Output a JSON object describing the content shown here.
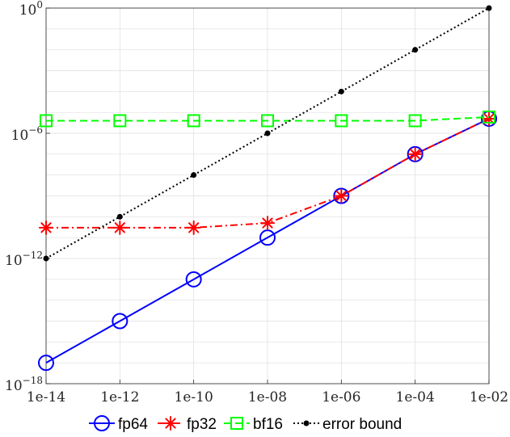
{
  "chart_data": {
    "type": "line",
    "title": "",
    "xlabel": "",
    "ylabel": "",
    "xscale": "log",
    "yscale": "log",
    "xlim": [
      1e-14,
      0.01
    ],
    "ylim": [
      1e-18,
      1
    ],
    "grid": true,
    "legend_position": "bottom",
    "x_ticks": [
      {
        "value": 1e-14,
        "label": "1e-14"
      },
      {
        "value": 1e-12,
        "label": "1e-12"
      },
      {
        "value": 1e-10,
        "label": "1e-10"
      },
      {
        "value": 1e-08,
        "label": "1e-08"
      },
      {
        "value": 1e-06,
        "label": "1e-06"
      },
      {
        "value": 0.0001,
        "label": "1e-04"
      },
      {
        "value": 0.01,
        "label": "1e-02"
      }
    ],
    "y_ticks": [
      {
        "value": 1,
        "base": "10",
        "exp": "0"
      },
      {
        "value": 1e-06,
        "base": "10",
        "exp": "−6"
      },
      {
        "value": 1e-12,
        "base": "10",
        "exp": "−12"
      },
      {
        "value": 1e-18,
        "base": "10",
        "exp": "−18"
      }
    ],
    "x": [
      1e-14,
      1e-12,
      1e-10,
      1e-08,
      1e-06,
      0.0001,
      0.01
    ],
    "series": [
      {
        "name": "fp64",
        "color": "#0000ff",
        "line": "solid",
        "marker": "circle",
        "values": [
          1e-17,
          1e-15,
          1e-13,
          1e-11,
          1e-09,
          1e-07,
          5e-06
        ]
      },
      {
        "name": "fp32",
        "color": "#ff0000",
        "line": "dashdot",
        "marker": "asterisk",
        "values": [
          3e-11,
          3e-11,
          3e-11,
          5e-11,
          1e-09,
          1e-07,
          5e-06
        ]
      },
      {
        "name": "bf16",
        "color": "#00ff00",
        "line": "dashed",
        "marker": "square",
        "values": [
          4e-06,
          4e-06,
          4e-06,
          4e-06,
          4e-06,
          4e-06,
          6e-06
        ]
      },
      {
        "name": "error bound",
        "color": "#000000",
        "line": "dotted",
        "marker": "dot",
        "values": [
          1e-12,
          1e-10,
          1e-08,
          1e-06,
          0.0001,
          0.01,
          1
        ]
      }
    ]
  }
}
